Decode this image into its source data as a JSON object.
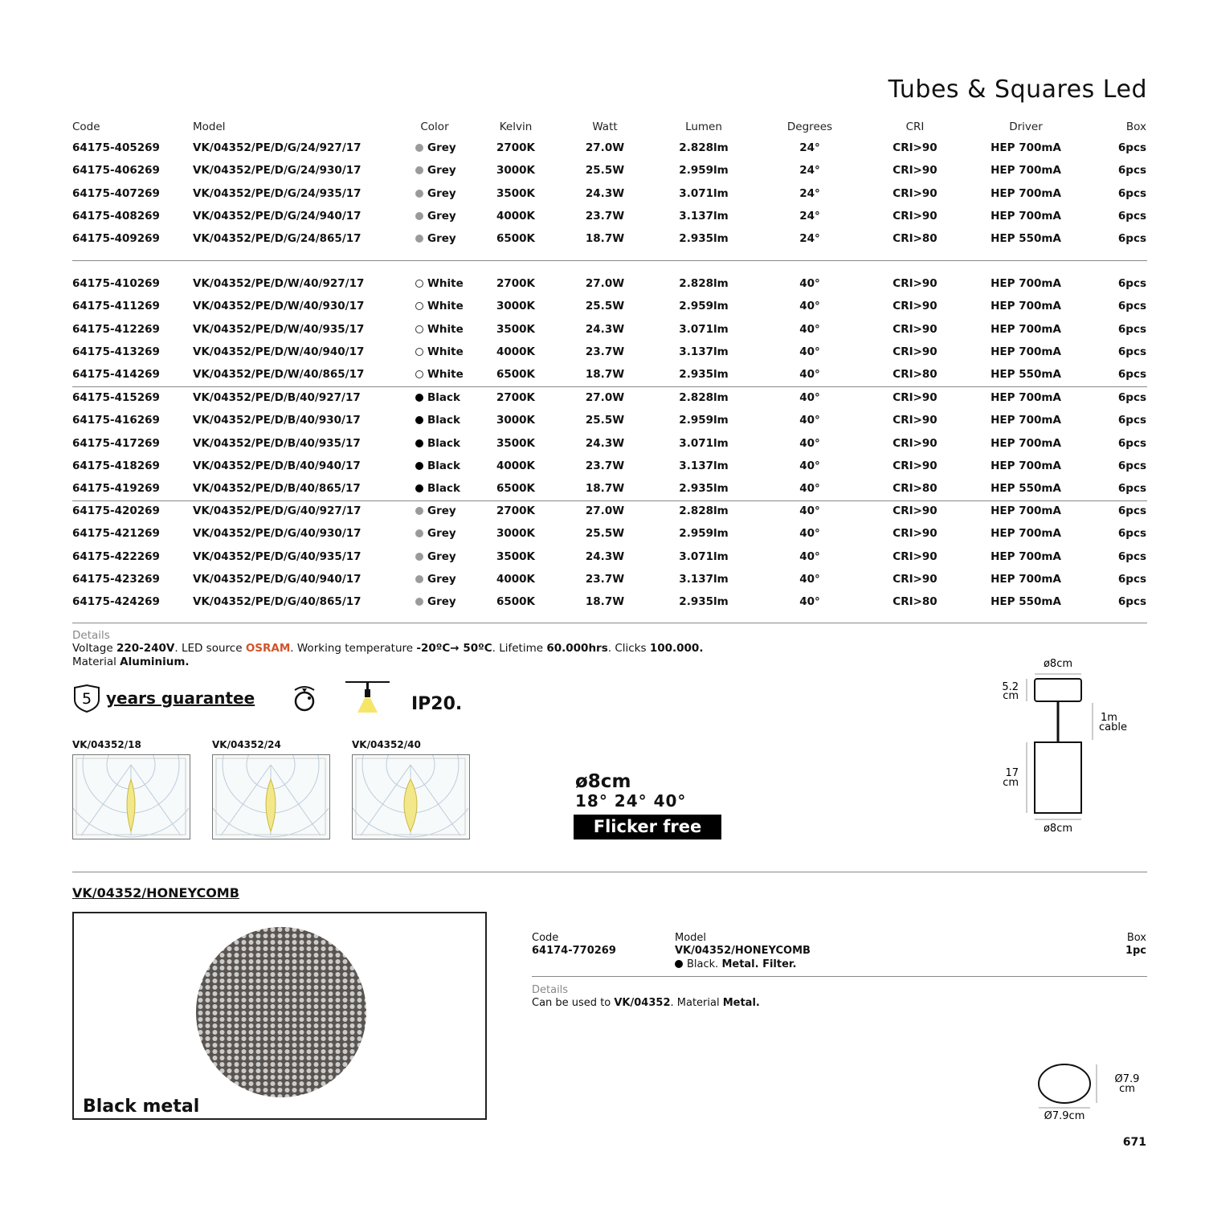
{
  "title": "Tubes & Squares Led",
  "headers": [
    "Code",
    "Model",
    "Color",
    "Kelvin",
    "Watt",
    "Lumen",
    "Degrees",
    "CRI",
    "Driver",
    "Box"
  ],
  "colors": {
    "Grey": "#9a9a9a",
    "White": "#ffffff",
    "Black": "#000000",
    "accent": "#d2542b"
  },
  "groups": [
    {
      "rows": [
        [
          "64175-405269",
          "VK/04352/PE/D/G/24/927/17",
          "Grey",
          "2700K",
          "27.0W",
          "2.828lm",
          "24°",
          "CRI>90",
          "HEP 700mA",
          "6pcs"
        ],
        [
          "64175-406269",
          "VK/04352/PE/D/G/24/930/17",
          "Grey",
          "3000K",
          "25.5W",
          "2.959lm",
          "24°",
          "CRI>90",
          "HEP 700mA",
          "6pcs"
        ],
        [
          "64175-407269",
          "VK/04352/PE/D/G/24/935/17",
          "Grey",
          "3500K",
          "24.3W",
          "3.071lm",
          "24°",
          "CRI>90",
          "HEP 700mA",
          "6pcs"
        ],
        [
          "64175-408269",
          "VK/04352/PE/D/G/24/940/17",
          "Grey",
          "4000K",
          "23.7W",
          "3.137lm",
          "24°",
          "CRI>90",
          "HEP 700mA",
          "6pcs"
        ],
        [
          "64175-409269",
          "VK/04352/PE/D/G/24/865/17",
          "Grey",
          "6500K",
          "18.7W",
          "2.935lm",
          "24°",
          "CRI>80",
          "HEP 550mA",
          "6pcs"
        ]
      ]
    },
    {
      "rows": [
        [
          "64175-410269",
          "VK/04352/PE/D/W/40/927/17",
          "White",
          "2700K",
          "27.0W",
          "2.828lm",
          "40°",
          "CRI>90",
          "HEP 700mA",
          "6pcs"
        ],
        [
          "64175-411269",
          "VK/04352/PE/D/W/40/930/17",
          "White",
          "3000K",
          "25.5W",
          "2.959lm",
          "40°",
          "CRI>90",
          "HEP 700mA",
          "6pcs"
        ],
        [
          "64175-412269",
          "VK/04352/PE/D/W/40/935/17",
          "White",
          "3500K",
          "24.3W",
          "3.071lm",
          "40°",
          "CRI>90",
          "HEP 700mA",
          "6pcs"
        ],
        [
          "64175-413269",
          "VK/04352/PE/D/W/40/940/17",
          "White",
          "4000K",
          "23.7W",
          "3.137lm",
          "40°",
          "CRI>90",
          "HEP 700mA",
          "6pcs"
        ],
        [
          "64175-414269",
          "VK/04352/PE/D/W/40/865/17",
          "White",
          "6500K",
          "18.7W",
          "2.935lm",
          "40°",
          "CRI>80",
          "HEP 550mA",
          "6pcs"
        ]
      ]
    },
    {
      "rows": [
        [
          "64175-415269",
          "VK/04352/PE/D/B/40/927/17",
          "Black",
          "2700K",
          "27.0W",
          "2.828lm",
          "40°",
          "CRI>90",
          "HEP 700mA",
          "6pcs"
        ],
        [
          "64175-416269",
          "VK/04352/PE/D/B/40/930/17",
          "Black",
          "3000K",
          "25.5W",
          "2.959lm",
          "40°",
          "CRI>90",
          "HEP 700mA",
          "6pcs"
        ],
        [
          "64175-417269",
          "VK/04352/PE/D/B/40/935/17",
          "Black",
          "3500K",
          "24.3W",
          "3.071lm",
          "40°",
          "CRI>90",
          "HEP 700mA",
          "6pcs"
        ],
        [
          "64175-418269",
          "VK/04352/PE/D/B/40/940/17",
          "Black",
          "4000K",
          "23.7W",
          "3.137lm",
          "40°",
          "CRI>90",
          "HEP 700mA",
          "6pcs"
        ],
        [
          "64175-419269",
          "VK/04352/PE/D/B/40/865/17",
          "Black",
          "6500K",
          "18.7W",
          "2.935lm",
          "40°",
          "CRI>80",
          "HEP 550mA",
          "6pcs"
        ]
      ]
    },
    {
      "rows": [
        [
          "64175-420269",
          "VK/04352/PE/D/G/40/927/17",
          "Grey",
          "2700K",
          "27.0W",
          "2.828lm",
          "40°",
          "CRI>90",
          "HEP 700mA",
          "6pcs"
        ],
        [
          "64175-421269",
          "VK/04352/PE/D/G/40/930/17",
          "Grey",
          "3000K",
          "25.5W",
          "2.959lm",
          "40°",
          "CRI>90",
          "HEP 700mA",
          "6pcs"
        ],
        [
          "64175-422269",
          "VK/04352/PE/D/G/40/935/17",
          "Grey",
          "3500K",
          "24.3W",
          "3.071lm",
          "40°",
          "CRI>90",
          "HEP 700mA",
          "6pcs"
        ],
        [
          "64175-423269",
          "VK/04352/PE/D/G/40/940/17",
          "Grey",
          "4000K",
          "23.7W",
          "3.137lm",
          "40°",
          "CRI>90",
          "HEP 700mA",
          "6pcs"
        ],
        [
          "64175-424269",
          "VK/04352/PE/D/G/40/865/17",
          "Grey",
          "6500K",
          "18.7W",
          "2.935lm",
          "40°",
          "CRI>80",
          "HEP 550mA",
          "6pcs"
        ]
      ]
    }
  ],
  "details": {
    "label": "Details",
    "l1a": "Voltage ",
    "l1b": "220-240V",
    "l1c": ". LED source ",
    "l1d": "OSRAM",
    "l1e": ". Working temperature ",
    "l1f": "-20ºC→ 50ºC",
    "l1g": ". Lifetime ",
    "l1h": "60.000hrs",
    "l1i": ". Clicks ",
    "l1j": "100.000.",
    "l2a": "Material ",
    "l2b": "Aluminium."
  },
  "features": {
    "guarantee_num": "5",
    "guarantee": "years guarantee",
    "ip": "IP20."
  },
  "polar": [
    "VK/04352/18",
    "VK/04352/24",
    "VK/04352/40"
  ],
  "spec": {
    "diameter": "ø8cm",
    "angles": "18° 24° 40°",
    "flicker": "Flicker free"
  },
  "dims": {
    "top_d": "ø8cm",
    "canopy_h1": "5.2",
    "canopy_h2": "cm",
    "cable1": "1m",
    "cable2": "cable",
    "body_h1": "17",
    "body_h2": "cm",
    "bottom_d": "ø8cm"
  },
  "accessory": {
    "title": "VK/04352/HONEYCOMB",
    "caption": "Black metal",
    "code_label": "Code",
    "code": "64174-770269",
    "model_label": "Model",
    "model": "VK/04352/HONEYCOMB",
    "desc_a": "Black. ",
    "desc_b": "Metal. Filter.",
    "box_label": "Box",
    "box": "1pc",
    "details_label": "Details",
    "det_a": "Can be used to ",
    "det_b": "VK/04352",
    "det_c": ". Material ",
    "det_d": "Metal.",
    "dim_side1": "Ø7.9",
    "dim_side2": "cm",
    "dim_bottom": "Ø7.9cm"
  },
  "page_number": "671"
}
